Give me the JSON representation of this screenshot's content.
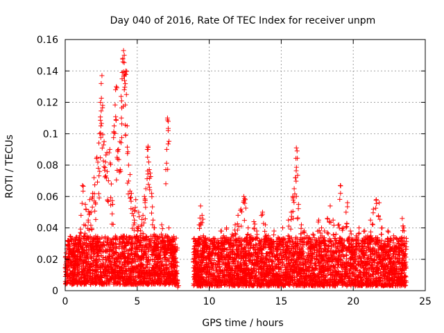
{
  "chart_data": {
    "type": "scatter",
    "title": "Day 040 of 2016, Rate Of TEC Index for receiver unpm",
    "xlabel": "GPS time / hours",
    "ylabel": "ROTI / TECUs",
    "xlim": [
      0,
      25
    ],
    "ylim": [
      0,
      0.16
    ],
    "xticks": [
      0,
      5,
      10,
      15,
      20,
      25
    ],
    "yticks": [
      0,
      0.02,
      0.04,
      0.06,
      0.08,
      0.1,
      0.12,
      0.14,
      0.16
    ],
    "xtick_labels": [
      "0",
      "5",
      "10",
      "15",
      "20",
      "25"
    ],
    "ytick_labels": [
      "0",
      "0.02",
      "0.04",
      "0.06",
      "0.08",
      "0.1",
      "0.12",
      "0.14",
      "0.16"
    ],
    "grid": true,
    "marker": "+",
    "marker_color": "#ff0000",
    "series": [
      {
        "name": "ROTI",
        "points": [
          [
            0.1,
            0.015
          ],
          [
            0.2,
            0.032
          ],
          [
            0.3,
            0.022
          ],
          [
            0.4,
            0.018
          ],
          [
            0.5,
            0.012
          ],
          [
            0.6,
            0.025
          ],
          [
            0.7,
            0.019
          ],
          [
            0.8,
            0.028
          ],
          [
            0.9,
            0.014
          ],
          [
            1.0,
            0.035
          ],
          [
            1.1,
            0.048
          ],
          [
            1.2,
            0.067
          ],
          [
            1.3,
            0.042
          ],
          [
            1.4,
            0.055
          ],
          [
            1.5,
            0.03
          ],
          [
            1.6,
            0.045
          ],
          [
            1.7,
            0.058
          ],
          [
            1.8,
            0.05
          ],
          [
            1.9,
            0.062
          ],
          [
            2.0,
            0.072
          ],
          [
            2.1,
            0.056
          ],
          [
            2.2,
            0.085
          ],
          [
            2.3,
            0.078
          ],
          [
            2.4,
            0.1
          ],
          [
            2.45,
            0.12
          ],
          [
            2.5,
            0.132
          ],
          [
            2.55,
            0.137
          ],
          [
            2.6,
            0.118
          ],
          [
            2.7,
            0.095
          ],
          [
            2.8,
            0.082
          ],
          [
            2.9,
            0.088
          ],
          [
            3.0,
            0.07
          ],
          [
            3.1,
            0.09
          ],
          [
            3.2,
            0.068
          ],
          [
            3.3,
            0.055
          ],
          [
            3.4,
            0.105
          ],
          [
            3.5,
            0.128
          ],
          [
            3.55,
            0.13
          ],
          [
            3.6,
            0.085
          ],
          [
            3.7,
            0.09
          ],
          [
            3.8,
            0.095
          ],
          [
            3.9,
            0.11
          ],
          [
            3.95,
            0.135
          ],
          [
            4.0,
            0.148
          ],
          [
            4.05,
            0.153
          ],
          [
            4.1,
            0.15
          ],
          [
            4.15,
            0.138
          ],
          [
            4.2,
            0.14
          ],
          [
            4.25,
            0.125
          ],
          [
            4.3,
            0.105
          ],
          [
            4.4,
            0.08
          ],
          [
            4.5,
            0.074
          ],
          [
            4.6,
            0.062
          ],
          [
            4.7,
            0.052
          ],
          [
            4.8,
            0.045
          ],
          [
            4.9,
            0.058
          ],
          [
            5.0,
            0.04
          ],
          [
            5.1,
            0.05
          ],
          [
            5.2,
            0.035
          ],
          [
            5.3,
            0.042
          ],
          [
            5.4,
            0.048
          ],
          [
            5.5,
            0.06
          ],
          [
            5.6,
            0.065
          ],
          [
            5.7,
            0.09
          ],
          [
            5.75,
            0.092
          ],
          [
            5.8,
            0.082
          ],
          [
            5.9,
            0.075
          ],
          [
            6.0,
            0.062
          ],
          [
            6.1,
            0.045
          ],
          [
            6.2,
            0.04
          ],
          [
            6.3,
            0.035
          ],
          [
            6.4,
            0.028
          ],
          [
            6.5,
            0.022
          ],
          [
            6.6,
            0.03
          ],
          [
            6.7,
            0.042
          ],
          [
            6.8,
            0.032
          ],
          [
            6.9,
            0.025
          ],
          [
            7.0,
            0.035
          ],
          [
            7.05,
            0.09
          ],
          [
            7.1,
            0.11
          ],
          [
            7.15,
            0.102
          ],
          [
            7.2,
            0.04
          ],
          [
            7.3,
            0.03
          ],
          [
            7.5,
            0.022
          ],
          [
            7.7,
            0.012
          ],
          [
            7.8,
            0.005
          ],
          [
            9.0,
            0.025
          ],
          [
            9.1,
            0.032
          ],
          [
            9.2,
            0.03
          ],
          [
            9.3,
            0.042
          ],
          [
            9.4,
            0.054
          ],
          [
            9.5,
            0.048
          ],
          [
            9.6,
            0.035
          ],
          [
            9.7,
            0.028
          ],
          [
            9.8,
            0.03
          ],
          [
            9.9,
            0.022
          ],
          [
            10.0,
            0.025
          ],
          [
            10.2,
            0.03
          ],
          [
            10.4,
            0.033
          ],
          [
            10.6,
            0.028
          ],
          [
            10.8,
            0.038
          ],
          [
            11.0,
            0.035
          ],
          [
            11.2,
            0.04
          ],
          [
            11.4,
            0.03
          ],
          [
            11.6,
            0.036
          ],
          [
            11.8,
            0.042
          ],
          [
            12.0,
            0.048
          ],
          [
            12.2,
            0.052
          ],
          [
            12.4,
            0.06
          ],
          [
            12.5,
            0.058
          ],
          [
            12.7,
            0.04
          ],
          [
            12.9,
            0.035
          ],
          [
            13.1,
            0.044
          ],
          [
            13.3,
            0.038
          ],
          [
            13.5,
            0.032
          ],
          [
            13.7,
            0.05
          ],
          [
            13.9,
            0.042
          ],
          [
            14.1,
            0.035
          ],
          [
            14.3,
            0.03
          ],
          [
            14.5,
            0.038
          ],
          [
            14.7,
            0.028
          ],
          [
            14.9,
            0.033
          ],
          [
            15.1,
            0.04
          ],
          [
            15.3,
            0.03
          ],
          [
            15.5,
            0.045
          ],
          [
            15.7,
            0.05
          ],
          [
            15.8,
            0.06
          ],
          [
            15.9,
            0.065
          ],
          [
            16.0,
            0.072
          ],
          [
            16.05,
            0.091
          ],
          [
            16.1,
            0.089
          ],
          [
            16.2,
            0.055
          ],
          [
            16.4,
            0.042
          ],
          [
            16.6,
            0.038
          ],
          [
            16.8,
            0.035
          ],
          [
            17.0,
            0.03
          ],
          [
            17.2,
            0.036
          ],
          [
            17.4,
            0.032
          ],
          [
            17.6,
            0.045
          ],
          [
            17.8,
            0.04
          ],
          [
            18.0,
            0.038
          ],
          [
            18.2,
            0.046
          ],
          [
            18.4,
            0.054
          ],
          [
            18.6,
            0.045
          ],
          [
            18.8,
            0.036
          ],
          [
            19.0,
            0.042
          ],
          [
            19.1,
            0.067
          ],
          [
            19.3,
            0.04
          ],
          [
            19.5,
            0.05
          ],
          [
            19.6,
            0.056
          ],
          [
            19.8,
            0.038
          ],
          [
            20.0,
            0.03
          ],
          [
            20.2,
            0.035
          ],
          [
            20.4,
            0.04
          ],
          [
            20.6,
            0.032
          ],
          [
            20.8,
            0.038
          ],
          [
            21.0,
            0.035
          ],
          [
            21.2,
            0.045
          ],
          [
            21.4,
            0.052
          ],
          [
            21.6,
            0.058
          ],
          [
            21.8,
            0.056
          ],
          [
            22.0,
            0.04
          ],
          [
            22.2,
            0.03
          ],
          [
            22.4,
            0.038
          ],
          [
            22.6,
            0.032
          ],
          [
            22.8,
            0.035
          ],
          [
            23.0,
            0.028
          ],
          [
            23.2,
            0.033
          ],
          [
            23.4,
            0.046
          ],
          [
            23.5,
            0.04
          ],
          [
            23.6,
            0.03
          ]
        ],
        "band": {
          "description": "dense cloud of points",
          "segments": [
            {
              "x": [
                0.0,
                7.8
              ],
              "y": [
                0.004,
                0.035
              ]
            },
            {
              "x": [
                8.9,
                23.7
              ],
              "y": [
                0.003,
                0.034
              ]
            }
          ]
        }
      }
    ]
  }
}
